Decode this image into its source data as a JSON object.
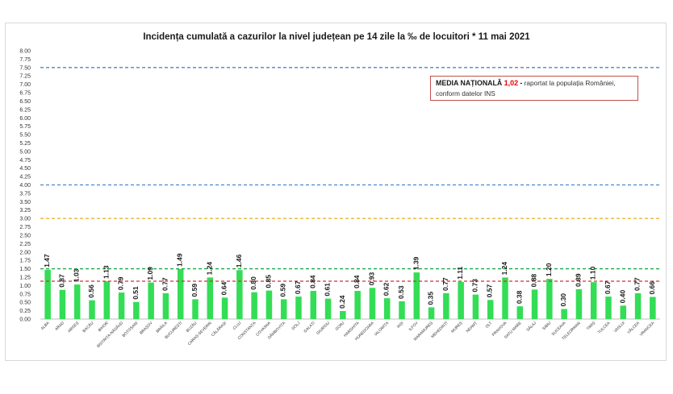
{
  "colors": {
    "bar": "#33dd55",
    "label": "#1a1a1a",
    "line_blue": "#4a86c8",
    "line_orange": "#e7ab1f",
    "line_green": "#1aa84a",
    "line_red": "#d13030",
    "note_border": "#c0504d",
    "note_value": "#e00000"
  },
  "note": {
    "label": "MEDIA NAȚIONALĂ",
    "value": "1,02",
    "dash": "-",
    "text_line1": "raportat la populația României,",
    "text_line2": "conform datelor INS"
  },
  "chart_data": {
    "type": "bar",
    "title": "Incidența cumulată a cazurilor la nivel județean pe 14 zile la ‰ de locuitori *  11 mai 2021",
    "xlabel": "",
    "ylabel": "",
    "ylim": [
      0,
      8
    ],
    "ytick_step": 0.25,
    "ytick_labels": [
      "0.00",
      "0.25",
      "0.50",
      "0.75",
      "1.00",
      "1.25",
      "1.50",
      "1.75",
      "2.00",
      "2.25",
      "2.50",
      "2.75",
      "3.00",
      "3.25",
      "3.50",
      "3.75",
      "4.00",
      "4.25",
      "4.50",
      "4.75",
      "5.00",
      "5.25",
      "5.50",
      "5.75",
      "6.00",
      "6.25",
      "6.50",
      "6.75",
      "7.00",
      "7.25",
      "7.50",
      "7.75",
      "8.00"
    ],
    "grid": false,
    "categories": [
      "ALBA",
      "ARAD",
      "ARGEȘ",
      "BACĂU",
      "BIHOR",
      "BISTRIȚA-NĂSĂUD",
      "BOTOȘANI",
      "BRAȘOV",
      "BRĂILA",
      "BUCUREȘTI",
      "BUZĂU",
      "CARAȘ-SEVERIN",
      "CĂLĂRAȘI",
      "CLUJ",
      "CONSTANȚA",
      "COVASNA",
      "DÂMBOVIȚA",
      "DOLJ",
      "GALAȚI",
      "GIURGIU",
      "GORJ",
      "HARGHITA",
      "HUNEDOARA",
      "IALOMIȚA",
      "IAȘI",
      "ILFOV",
      "MARAMUREȘ",
      "MEHEDINȚI",
      "MUREȘ",
      "NEAMȚ",
      "OLT",
      "PRAHOVA",
      "SATU MARE",
      "SĂLAJ",
      "SIBIU",
      "SUCEAVA",
      "TELEORMAN",
      "TIMIȘ",
      "TULCEA",
      "VASLUI",
      "VÂLCEA",
      "VRANCEA"
    ],
    "values": [
      1.47,
      0.87,
      1.03,
      0.56,
      1.13,
      0.79,
      0.51,
      1.09,
      0.77,
      1.49,
      0.59,
      1.24,
      0.64,
      1.46,
      0.8,
      0.85,
      0.59,
      0.67,
      0.84,
      0.61,
      0.24,
      0.84,
      0.93,
      0.62,
      0.53,
      1.39,
      0.35,
      0.77,
      1.11,
      0.73,
      0.57,
      1.24,
      0.38,
      0.88,
      1.2,
      0.3,
      0.89,
      1.1,
      0.67,
      0.4,
      0.77,
      0.66
    ],
    "value_labels": [
      "1.47",
      "0.87",
      "1.03",
      "0.56",
      "1.13",
      "0.79",
      "0.51",
      "1.09",
      "0.77",
      "1.49",
      "0.59",
      "1.24",
      "0.64",
      "1.46",
      "0.80",
      "0.85",
      "0.59",
      "0.67",
      "0.84",
      "0.61",
      "0.24",
      "0.84",
      "0.93",
      "0.62",
      "0.53",
      "1.39",
      "0.35",
      "0.77",
      "1.11",
      "0.73",
      "0.57",
      "1.24",
      "0.38",
      "0.88",
      "1.20",
      "0.30",
      "0.89",
      "1.10",
      "0.67",
      "0.40",
      "0.77",
      "0.66"
    ],
    "reference_lines": [
      {
        "value": 7.5,
        "color": "#4a86c8",
        "style": "dashed"
      },
      {
        "value": 4.0,
        "color": "#4a86c8",
        "style": "dashed"
      },
      {
        "value": 3.0,
        "color": "#e7ab1f",
        "style": "dashed"
      },
      {
        "value": 1.5,
        "color": "#1aa84a",
        "style": "dashed"
      },
      {
        "value": 1.13,
        "color": "#d13030",
        "style": "dashed"
      }
    ]
  }
}
